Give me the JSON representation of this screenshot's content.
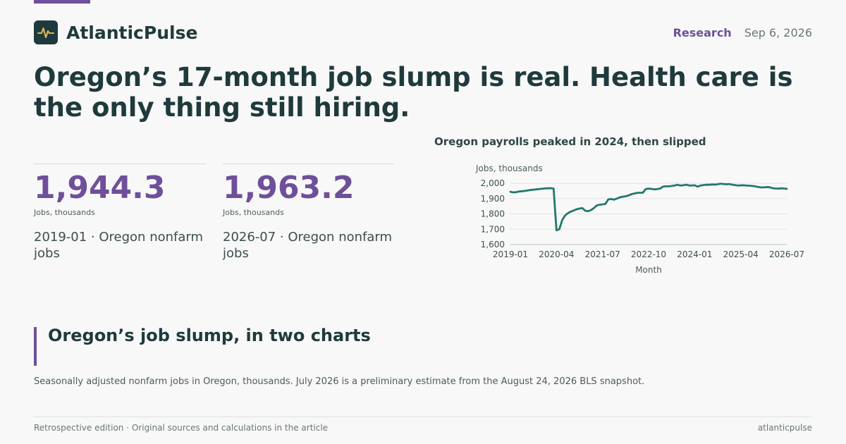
{
  "brand": {
    "name": "AtlanticPulse",
    "logo_icon": "pulse-icon",
    "accent_color": "#6f4f9a",
    "primary_color": "#1f3a3c"
  },
  "header": {
    "section": "Research",
    "date": "Sep 6, 2026"
  },
  "headline": "Oregon’s 17-month job slump is real. Health care is the only thing still hiring.",
  "stats": [
    {
      "value": "1,944.3",
      "unit": "Jobs, thousands",
      "desc": "2019-01 · Oregon nonfarm jobs"
    },
    {
      "value": "1,963.2",
      "unit": "Jobs, thousands",
      "desc": "2026-07 · Oregon nonfarm jobs"
    }
  ],
  "chart_data": {
    "type": "line",
    "title": "Oregon payrolls peaked in 2024, then slipped",
    "xlabel": "Month",
    "ylabel": "Jobs, thousands",
    "ylim": [
      1600,
      2000
    ],
    "yticks": [
      1600,
      1700,
      1800,
      1900,
      2000
    ],
    "ytick_labels": [
      "1,600",
      "1,700",
      "1,800",
      "1,900",
      "2,000"
    ],
    "xtick_labels": [
      "2019-01",
      "2020-04",
      "2021-07",
      "2022-10",
      "2024-01",
      "2025-04",
      "2026-07"
    ],
    "grid": true,
    "line_color": "#23786e",
    "series": [
      {
        "values": [
          1944.3,
          1940,
          1942,
          1946,
          1948,
          1950,
          1953,
          1956,
          1958,
          1960,
          1962,
          1964,
          1966,
          1967,
          1968,
          1965,
          1693,
          1700,
          1760,
          1790,
          1805,
          1815,
          1822,
          1830,
          1835,
          1838,
          1820,
          1818,
          1825,
          1838,
          1855,
          1860,
          1862,
          1865,
          1895,
          1897,
          1893,
          1900,
          1908,
          1912,
          1915,
          1920,
          1928,
          1933,
          1937,
          1938,
          1938,
          1962,
          1965,
          1963,
          1960,
          1962,
          1965,
          1978,
          1980,
          1980,
          1982,
          1985,
          1990,
          1985,
          1987,
          1990,
          1986,
          1985,
          1987,
          1978,
          1985,
          1988,
          1990,
          1990,
          1992,
          1991,
          1993,
          1997,
          1995,
          1993,
          1995,
          1991,
          1988,
          1985,
          1986,
          1987,
          1985,
          1984,
          1982,
          1980,
          1976,
          1973,
          1973,
          1975,
          1974,
          1968,
          1966,
          1965,
          1967,
          1966,
          1963.2
        ]
      }
    ]
  },
  "section": {
    "title": "Oregon’s job slump, in two charts",
    "caption": "Seasonally adjusted nonfarm jobs in Oregon, thousands. July 2026 is a preliminary estimate from the August 24, 2026 BLS snapshot."
  },
  "footer": {
    "left": "Retrospective edition · Original sources and calculations in the article",
    "right": "atlanticpulse"
  }
}
